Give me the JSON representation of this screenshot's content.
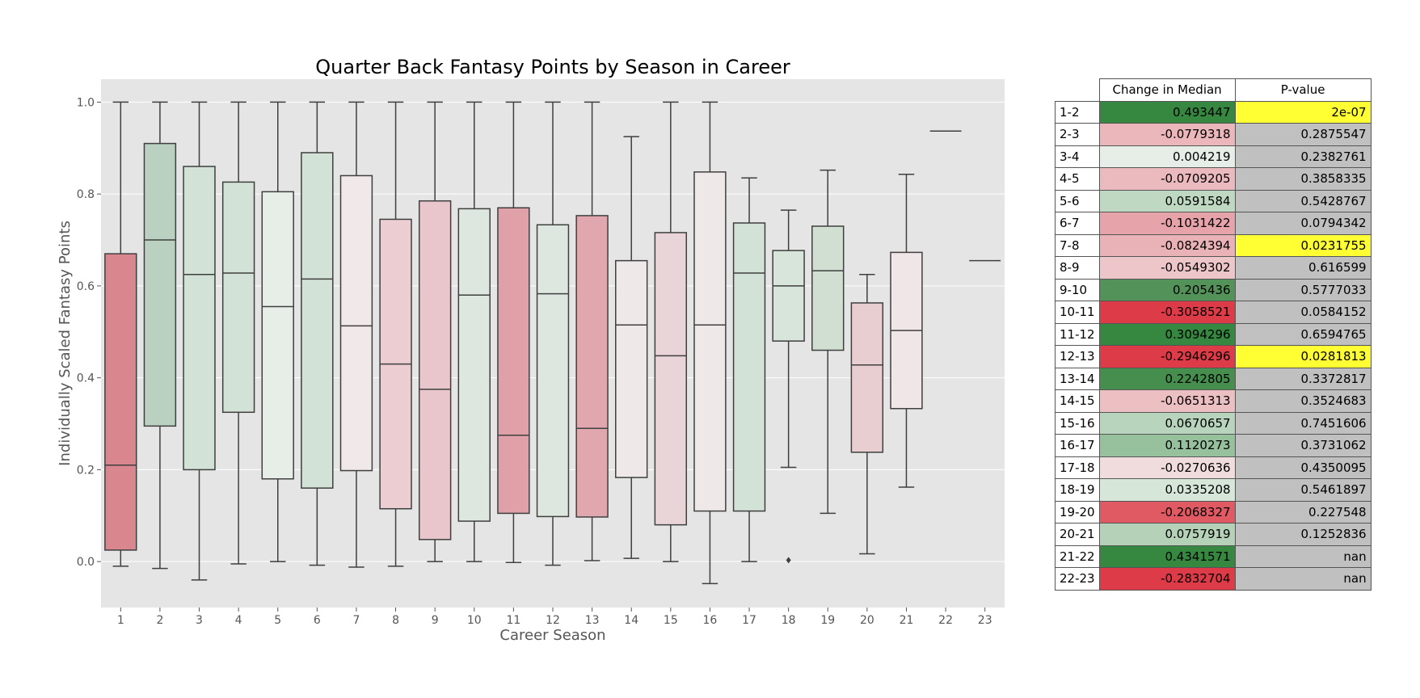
{
  "chart_data": [
    {
      "type": "box",
      "title": "Quarter Back Fantasy Points by Season in Career",
      "xlabel": "Career Season",
      "ylabel": "Individually Scaled Fantasy Points",
      "ylim": [
        -0.1,
        1.05
      ],
      "yticks": [
        "0.0",
        "0.2",
        "0.4",
        "0.6",
        "0.8",
        "1.0"
      ],
      "grid": true,
      "background": "#e5e5e5",
      "categories": [
        "1",
        "2",
        "3",
        "4",
        "5",
        "6",
        "7",
        "8",
        "9",
        "10",
        "11",
        "12",
        "13",
        "14",
        "15",
        "16",
        "17",
        "18",
        "19",
        "20",
        "21",
        "22",
        "23"
      ],
      "boxes": [
        {
          "season": "1",
          "whisker_low": -0.01,
          "q1": 0.025,
          "median": 0.21,
          "q3": 0.67,
          "whisker_high": 1.0,
          "fill": "#d9868e"
        },
        {
          "season": "2",
          "whisker_low": -0.015,
          "q1": 0.295,
          "median": 0.7,
          "q3": 0.91,
          "whisker_high": 1.0,
          "fill": "#bad1c2"
        },
        {
          "season": "3",
          "whisker_low": -0.04,
          "q1": 0.2,
          "median": 0.625,
          "q3": 0.86,
          "whisker_high": 1.0,
          "fill": "#d3e2d6"
        },
        {
          "season": "4",
          "whisker_low": -0.005,
          "q1": 0.325,
          "median": 0.628,
          "q3": 0.826,
          "whisker_high": 1.0,
          "fill": "#d3e2d6"
        },
        {
          "season": "5",
          "whisker_low": 0.0,
          "q1": 0.18,
          "median": 0.555,
          "q3": 0.805,
          "whisker_high": 1.0,
          "fill": "#e6eee7"
        },
        {
          "season": "6",
          "whisker_low": -0.008,
          "q1": 0.16,
          "median": 0.615,
          "q3": 0.89,
          "whisker_high": 1.0,
          "fill": "#d3e2d6"
        },
        {
          "season": "7",
          "whisker_low": -0.012,
          "q1": 0.198,
          "median": 0.513,
          "q3": 0.84,
          "whisker_high": 1.0,
          "fill": "#f0e8e9"
        },
        {
          "season": "8",
          "whisker_low": -0.01,
          "q1": 0.115,
          "median": 0.43,
          "q3": 0.745,
          "whisker_high": 1.0,
          "fill": "#ebcdd2"
        },
        {
          "season": "9",
          "whisker_low": 0.0,
          "q1": 0.048,
          "median": 0.375,
          "q3": 0.785,
          "whisker_high": 1.0,
          "fill": "#e8c6cb"
        },
        {
          "season": "10",
          "whisker_low": 0.0,
          "q1": 0.088,
          "median": 0.58,
          "q3": 0.768,
          "whisker_high": 1.0,
          "fill": "#dde7df"
        },
        {
          "season": "11",
          "whisker_low": -0.002,
          "q1": 0.105,
          "median": 0.275,
          "q3": 0.77,
          "whisker_high": 1.0,
          "fill": "#dfa0a8"
        },
        {
          "season": "12",
          "whisker_low": -0.008,
          "q1": 0.098,
          "median": 0.583,
          "q3": 0.733,
          "whisker_high": 1.0,
          "fill": "#dde7df"
        },
        {
          "season": "13",
          "whisker_low": 0.002,
          "q1": 0.097,
          "median": 0.29,
          "q3": 0.753,
          "whisker_high": 1.0,
          "fill": "#e0a7ae"
        },
        {
          "season": "14",
          "whisker_low": 0.007,
          "q1": 0.183,
          "median": 0.515,
          "q3": 0.655,
          "whisker_high": 0.925,
          "fill": "#eee8e9"
        },
        {
          "season": "15",
          "whisker_low": 0.0,
          "q1": 0.08,
          "median": 0.448,
          "q3": 0.716,
          "whisker_high": 1.0,
          "fill": "#e9d4d7"
        },
        {
          "season": "16",
          "whisker_low": -0.048,
          "q1": 0.11,
          "median": 0.515,
          "q3": 0.848,
          "whisker_high": 1.0,
          "fill": "#eee8e9"
        },
        {
          "season": "17",
          "whisker_low": 0.0,
          "q1": 0.11,
          "median": 0.628,
          "q3": 0.737,
          "whisker_high": 0.835,
          "fill": "#d3e2d6"
        },
        {
          "season": "18",
          "whisker_low": 0.205,
          "q1": 0.48,
          "median": 0.6,
          "q3": 0.677,
          "whisker_high": 0.765,
          "fill": "#d8e5da",
          "outliers": [
            0.003
          ]
        },
        {
          "season": "19",
          "whisker_low": 0.105,
          "q1": 0.46,
          "median": 0.633,
          "q3": 0.73,
          "whisker_high": 0.852,
          "fill": "#d0dfd2"
        },
        {
          "season": "20",
          "whisker_low": 0.017,
          "q1": 0.238,
          "median": 0.428,
          "q3": 0.563,
          "whisker_high": 0.625,
          "fill": "#e8cdd1"
        },
        {
          "season": "21",
          "whisker_low": 0.162,
          "q1": 0.333,
          "median": 0.503,
          "q3": 0.673,
          "whisker_high": 0.843,
          "fill": "#f0e5e7"
        },
        {
          "season": "22",
          "whisker_low": 0.937,
          "q1": 0.937,
          "median": 0.937,
          "q3": 0.937,
          "whisker_high": 0.937,
          "fill": "#e5e5e5"
        },
        {
          "season": "23",
          "whisker_low": 0.655,
          "q1": 0.655,
          "median": 0.655,
          "q3": 0.655,
          "whisker_high": 0.655,
          "fill": "#e5e5e5"
        }
      ]
    },
    {
      "type": "table",
      "columns": [
        "Change in Median",
        "P-value"
      ],
      "rows": [
        {
          "pair": "1-2",
          "change": "0.493447",
          "pvalue": "2e-07",
          "change_color": "#36873f",
          "pvalue_color": "#ffff33"
        },
        {
          "pair": "2-3",
          "change": "-0.0779318",
          "pvalue": "0.2875547",
          "change_color": "#ebb7bb",
          "pvalue_color": "#c0c0c0"
        },
        {
          "pair": "3-4",
          "change": "0.004219",
          "pvalue": "0.2382761",
          "change_color": "#e6eee7",
          "pvalue_color": "#c0c0c0"
        },
        {
          "pair": "4-5",
          "change": "-0.0709205",
          "pvalue": "0.3858335",
          "change_color": "#ebbabe",
          "pvalue_color": "#c0c0c0"
        },
        {
          "pair": "5-6",
          "change": "0.0591584",
          "pvalue": "0.5428767",
          "change_color": "#bfd8c2",
          "pvalue_color": "#c0c0c0"
        },
        {
          "pair": "6-7",
          "change": "-0.1031422",
          "pvalue": "0.0794342",
          "change_color": "#e7a3aa",
          "pvalue_color": "#c0c0c0"
        },
        {
          "pair": "7-8",
          "change": "-0.0824394",
          "pvalue": "0.0231755",
          "change_color": "#e9b2b7",
          "pvalue_color": "#ffff33"
        },
        {
          "pair": "8-9",
          "change": "-0.0549302",
          "pvalue": "0.616599",
          "change_color": "#edc6c9",
          "pvalue_color": "#c0c0c0"
        },
        {
          "pair": "9-10",
          "change": "0.205436",
          "pvalue": "0.5777033",
          "change_color": "#539359",
          "pvalue_color": "#c0c0c0"
        },
        {
          "pair": "10-11",
          "change": "-0.3058521",
          "pvalue": "0.0584152",
          "change_color": "#dd3b48",
          "pvalue_color": "#c0c0c0"
        },
        {
          "pair": "11-12",
          "change": "0.3094296",
          "pvalue": "0.6594765",
          "change_color": "#36873f",
          "pvalue_color": "#c0c0c0"
        },
        {
          "pair": "12-13",
          "change": "-0.2946296",
          "pvalue": "0.0281813",
          "change_color": "#dd3b48",
          "pvalue_color": "#ffff33"
        },
        {
          "pair": "13-14",
          "change": "0.2242805",
          "pvalue": "0.3372817",
          "change_color": "#468e4e",
          "pvalue_color": "#c0c0c0"
        },
        {
          "pair": "14-15",
          "change": "-0.0651313",
          "pvalue": "0.3524683",
          "change_color": "#ecbfc2",
          "pvalue_color": "#c0c0c0"
        },
        {
          "pair": "15-16",
          "change": "0.0670657",
          "pvalue": "0.7451606",
          "change_color": "#b9d4bc",
          "pvalue_color": "#c0c0c0"
        },
        {
          "pair": "16-17",
          "change": "0.1120273",
          "pvalue": "0.3731062",
          "change_color": "#97c09c",
          "pvalue_color": "#c0c0c0"
        },
        {
          "pair": "17-18",
          "change": "-0.0270636",
          "pvalue": "0.4350095",
          "change_color": "#f0dcdd",
          "pvalue_color": "#c0c0c0"
        },
        {
          "pair": "18-19",
          "change": "0.0335208",
          "pvalue": "0.5461897",
          "change_color": "#d6e6d8",
          "pvalue_color": "#c0c0c0"
        },
        {
          "pair": "19-20",
          "change": "-0.2068327",
          "pvalue": "0.227548",
          "change_color": "#e05a64",
          "pvalue_color": "#c0c0c0"
        },
        {
          "pair": "20-21",
          "change": "0.0757919",
          "pvalue": "0.1252836",
          "change_color": "#b5d2b8",
          "pvalue_color": "#c0c0c0"
        },
        {
          "pair": "21-22",
          "change": "0.4341571",
          "pvalue": "nan",
          "change_color": "#36873f",
          "pvalue_color": "#c0c0c0"
        },
        {
          "pair": "22-23",
          "change": "-0.2832704",
          "pvalue": "nan",
          "change_color": "#dd3b48",
          "pvalue_color": "#c0c0c0"
        }
      ]
    }
  ]
}
